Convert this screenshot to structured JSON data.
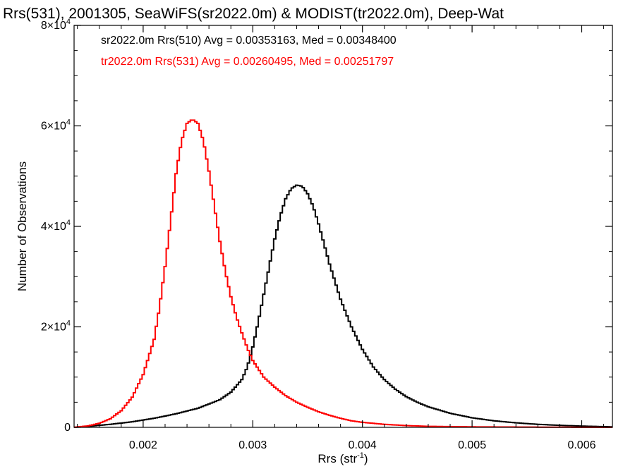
{
  "chart_data": {
    "type": "line",
    "title": "Rrs(531), 2001305, SeaWiFS(sr2022.0m) & MODIST(tr2022.0m), Deep-Wat",
    "xlabel": "Rrs (str",
    "xlabel_sup": "-1",
    "xlabel_close": ")",
    "ylabel": "Number of Observations",
    "xlim": [
      0.00137,
      0.00628
    ],
    "ylim": [
      0,
      80000
    ],
    "x_ticks": [
      {
        "value": 0.002,
        "label": "0.002"
      },
      {
        "value": 0.003,
        "label": "0.003"
      },
      {
        "value": 0.004,
        "label": "0.004"
      },
      {
        "value": 0.005,
        "label": "0.005"
      },
      {
        "value": 0.006,
        "label": "0.006"
      }
    ],
    "y_ticks": [
      {
        "value": 0,
        "label": "0",
        "exp": ""
      },
      {
        "value": 20000,
        "label": "2×10",
        "exp": "4"
      },
      {
        "value": 40000,
        "label": "4×10",
        "exp": "4"
      },
      {
        "value": 60000,
        "label": "6×10",
        "exp": "4"
      },
      {
        "value": 80000,
        "label": "8×10",
        "exp": "4"
      }
    ],
    "grid": false,
    "annotations": [
      {
        "text": "sr2022.0m Rrs(510) Avg = 0.00353163, Med = 0.00348400",
        "color": "#000000"
      },
      {
        "text": "tr2022.0m Rrs(531) Avg = 0.00260495, Med = 0.00251797",
        "color": "#ff0000"
      }
    ],
    "series": [
      {
        "color": "#000000",
        "x": [
          0.00137,
          0.0015,
          0.0017,
          0.0019,
          0.0021,
          0.0023,
          0.0025,
          0.0027,
          0.0028,
          0.0029,
          0.00295,
          0.003,
          0.00305,
          0.0031,
          0.00315,
          0.0032,
          0.00325,
          0.0033,
          0.00335,
          0.0034,
          0.00345,
          0.0035,
          0.00355,
          0.0036,
          0.00365,
          0.0037,
          0.00375,
          0.0038,
          0.0039,
          0.004,
          0.0041,
          0.0042,
          0.0043,
          0.0044,
          0.0045,
          0.0046,
          0.0048,
          0.005,
          0.0052,
          0.0054,
          0.0056,
          0.0058,
          0.006,
          0.00628
        ],
        "y": [
          0,
          200,
          600,
          1100,
          1800,
          2700,
          3800,
          5500,
          7000,
          9500,
          12000,
          16000,
          21000,
          26500,
          32000,
          37500,
          42000,
          45500,
          47500,
          48200,
          48000,
          46500,
          44000,
          40500,
          36500,
          32500,
          29000,
          25500,
          20000,
          15500,
          12000,
          9500,
          7600,
          6100,
          5000,
          4100,
          2800,
          1900,
          1300,
          900,
          600,
          400,
          250,
          100
        ]
      },
      {
        "color": "#ff0000",
        "x": [
          0.00137,
          0.0015,
          0.0016,
          0.0017,
          0.0018,
          0.0019,
          0.002,
          0.0021,
          0.00215,
          0.0022,
          0.00225,
          0.0023,
          0.00235,
          0.0024,
          0.00245,
          0.0025,
          0.00255,
          0.0026,
          0.00265,
          0.0027,
          0.00275,
          0.0028,
          0.00285,
          0.0029,
          0.00295,
          0.003,
          0.0031,
          0.0032,
          0.0033,
          0.0034,
          0.0035,
          0.0036,
          0.0037,
          0.0038,
          0.0039,
          0.004,
          0.0042,
          0.0044,
          0.0046,
          0.0048,
          0.005,
          0.0055,
          0.006,
          0.00628
        ],
        "y": [
          0,
          300,
          800,
          1700,
          3300,
          6000,
          10500,
          17500,
          24000,
          32000,
          41000,
          50500,
          57000,
          60500,
          61300,
          60500,
          57000,
          51000,
          44000,
          37000,
          31000,
          26000,
          22000,
          18800,
          15800,
          13300,
          10000,
          8000,
          6300,
          5000,
          4000,
          3100,
          2400,
          1800,
          1300,
          1000,
          600,
          350,
          200,
          150,
          100,
          50,
          20,
          0
        ]
      }
    ]
  }
}
